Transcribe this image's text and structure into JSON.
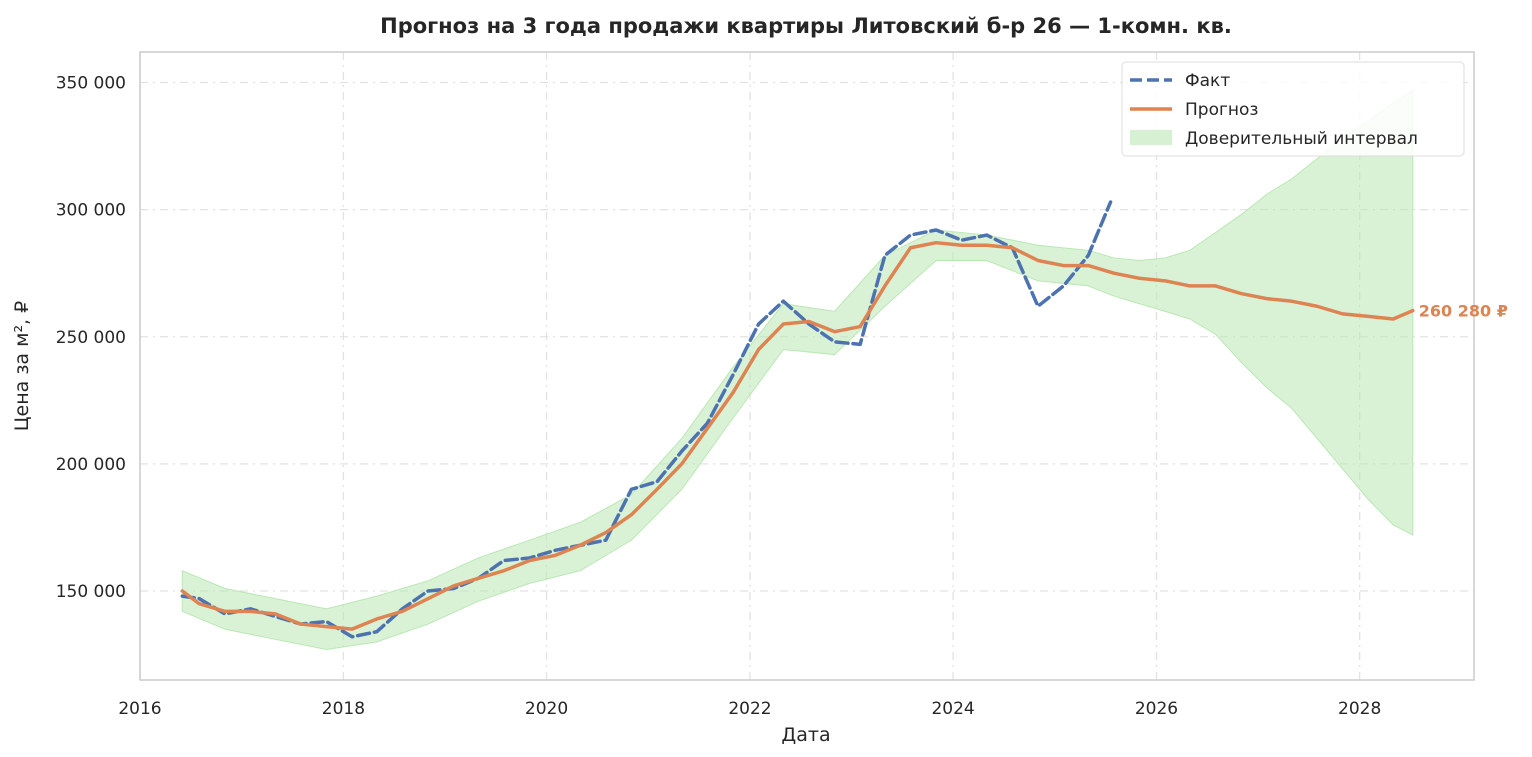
{
  "chart_data": {
    "type": "line",
    "title": "Прогноз на 3 года продажи квартиры  Литовский б-р 26 — 1-комн. кв.",
    "xlabel": "Дата",
    "ylabel": "Цена за м², ₽",
    "xlim": [
      "2016-01-01",
      "2029-02-15"
    ],
    "ylim": [
      115000,
      362000
    ],
    "x_ticks": [
      {
        "date": "2016-01-01",
        "label": "2016"
      },
      {
        "date": "2018-01-01",
        "label": "2018"
      },
      {
        "date": "2020-01-01",
        "label": "2020"
      },
      {
        "date": "2022-01-01",
        "label": "2022"
      },
      {
        "date": "2024-01-01",
        "label": "2024"
      },
      {
        "date": "2026-01-01",
        "label": "2026"
      },
      {
        "date": "2028-01-01",
        "label": "2028"
      }
    ],
    "y_ticks": [
      {
        "value": 150000,
        "label": "150 000"
      },
      {
        "value": 200000,
        "label": "200 000"
      },
      {
        "value": 250000,
        "label": "250 000"
      },
      {
        "value": 300000,
        "label": "300 000"
      },
      {
        "value": 350000,
        "label": "350 000"
      }
    ],
    "grid": true,
    "legend": {
      "position": "top-right",
      "items": [
        {
          "key": "fact",
          "label": "Факт"
        },
        {
          "key": "forecast",
          "label": "Прогноз"
        },
        {
          "key": "ci",
          "label": "Доверительный интервал"
        }
      ]
    },
    "colors": {
      "fact": "#4c72b0",
      "forecast": "#dd8452",
      "ci": "#b9e8b3"
    },
    "end_label": {
      "text": "260 280 ₽",
      "value": 260280,
      "date": "2028-07-10"
    },
    "series": [
      {
        "key": "fact",
        "name": "Факт",
        "style": "dashed",
        "x": [
          "2016-06-01",
          "2016-08-01",
          "2016-11-01",
          "2017-02-01",
          "2017-05-01",
          "2017-08-01",
          "2017-11-01",
          "2018-02-01",
          "2018-05-01",
          "2018-08-01",
          "2018-11-01",
          "2019-02-01",
          "2019-05-01",
          "2019-08-01",
          "2019-11-01",
          "2020-02-01",
          "2020-05-01",
          "2020-08-01",
          "2020-11-01",
          "2021-02-01",
          "2021-05-01",
          "2021-08-01",
          "2021-11-01",
          "2022-02-01",
          "2022-05-01",
          "2022-08-01",
          "2022-11-01",
          "2023-02-01",
          "2023-05-01",
          "2023-08-01",
          "2023-11-01",
          "2024-02-01",
          "2024-05-01",
          "2024-08-01",
          "2024-11-01",
          "2025-02-01",
          "2025-05-01",
          "2025-07-20"
        ],
        "y": [
          148000,
          147000,
          141000,
          143000,
          140000,
          137000,
          138000,
          132000,
          134000,
          143000,
          150000,
          151000,
          155000,
          162000,
          163000,
          166000,
          168000,
          170000,
          190000,
          193000,
          205000,
          216000,
          235000,
          255000,
          264000,
          255000,
          248000,
          247000,
          282000,
          290000,
          292000,
          288000,
          290000,
          285000,
          262000,
          270000,
          282000,
          303000
        ]
      },
      {
        "key": "forecast",
        "name": "Прогноз",
        "style": "solid",
        "x": [
          "2016-06-01",
          "2016-08-01",
          "2016-11-01",
          "2017-02-01",
          "2017-05-01",
          "2017-08-01",
          "2017-11-01",
          "2018-02-01",
          "2018-05-01",
          "2018-08-01",
          "2018-11-01",
          "2019-02-01",
          "2019-05-01",
          "2019-08-01",
          "2019-11-01",
          "2020-02-01",
          "2020-05-01",
          "2020-08-01",
          "2020-11-01",
          "2021-02-01",
          "2021-05-01",
          "2021-08-01",
          "2021-11-01",
          "2022-02-01",
          "2022-05-01",
          "2022-08-01",
          "2022-11-01",
          "2023-02-01",
          "2023-05-01",
          "2023-08-01",
          "2023-11-01",
          "2024-02-01",
          "2024-05-01",
          "2024-08-01",
          "2024-11-01",
          "2025-02-01",
          "2025-05-01",
          "2025-08-01",
          "2025-11-01",
          "2026-02-01",
          "2026-05-01",
          "2026-08-01",
          "2026-11-01",
          "2027-02-01",
          "2027-05-01",
          "2027-08-01",
          "2027-11-01",
          "2028-02-01",
          "2028-05-01",
          "2028-07-10"
        ],
        "y": [
          150000,
          145000,
          142000,
          142000,
          141000,
          137000,
          136000,
          135000,
          139000,
          142000,
          147000,
          152000,
          155000,
          158000,
          162000,
          164000,
          168000,
          173000,
          180000,
          190000,
          200000,
          214000,
          228000,
          245000,
          255000,
          256000,
          252000,
          254000,
          270000,
          285000,
          287000,
          286000,
          286000,
          285000,
          280000,
          278000,
          278000,
          275000,
          273000,
          272000,
          270000,
          270000,
          267000,
          265000,
          264000,
          262000,
          259000,
          258000,
          257000,
          260280
        ]
      },
      {
        "key": "ci",
        "name": "Доверительный интервал",
        "style": "band",
        "x": [
          "2016-06-01",
          "2016-11-01",
          "2017-05-01",
          "2017-11-01",
          "2018-05-01",
          "2018-11-01",
          "2019-05-01",
          "2019-11-01",
          "2020-05-01",
          "2020-11-01",
          "2021-05-01",
          "2021-11-01",
          "2022-05-01",
          "2022-11-01",
          "2023-05-01",
          "2023-11-01",
          "2024-05-01",
          "2024-11-01",
          "2025-05-01",
          "2025-08-01",
          "2025-11-01",
          "2026-02-01",
          "2026-05-01",
          "2026-08-01",
          "2026-11-01",
          "2027-02-01",
          "2027-05-01",
          "2027-08-01",
          "2027-11-01",
          "2028-02-01",
          "2028-05-01",
          "2028-07-10"
        ],
        "lower": [
          142000,
          135000,
          131000,
          127000,
          130000,
          137000,
          146000,
          153000,
          158000,
          170000,
          190000,
          218000,
          245000,
          243000,
          262000,
          280000,
          280000,
          272000,
          270000,
          266000,
          263000,
          260000,
          257000,
          251000,
          240000,
          230000,
          222000,
          210000,
          198000,
          186000,
          176000,
          172000
        ],
        "upper": [
          158000,
          151000,
          147000,
          143000,
          148000,
          154000,
          163000,
          170000,
          177000,
          188000,
          210000,
          238000,
          263000,
          260000,
          282000,
          292000,
          290000,
          286000,
          284000,
          281000,
          280000,
          281000,
          284000,
          291000,
          298000,
          306000,
          312000,
          320000,
          328000,
          335000,
          342000,
          347000
        ]
      }
    ]
  }
}
